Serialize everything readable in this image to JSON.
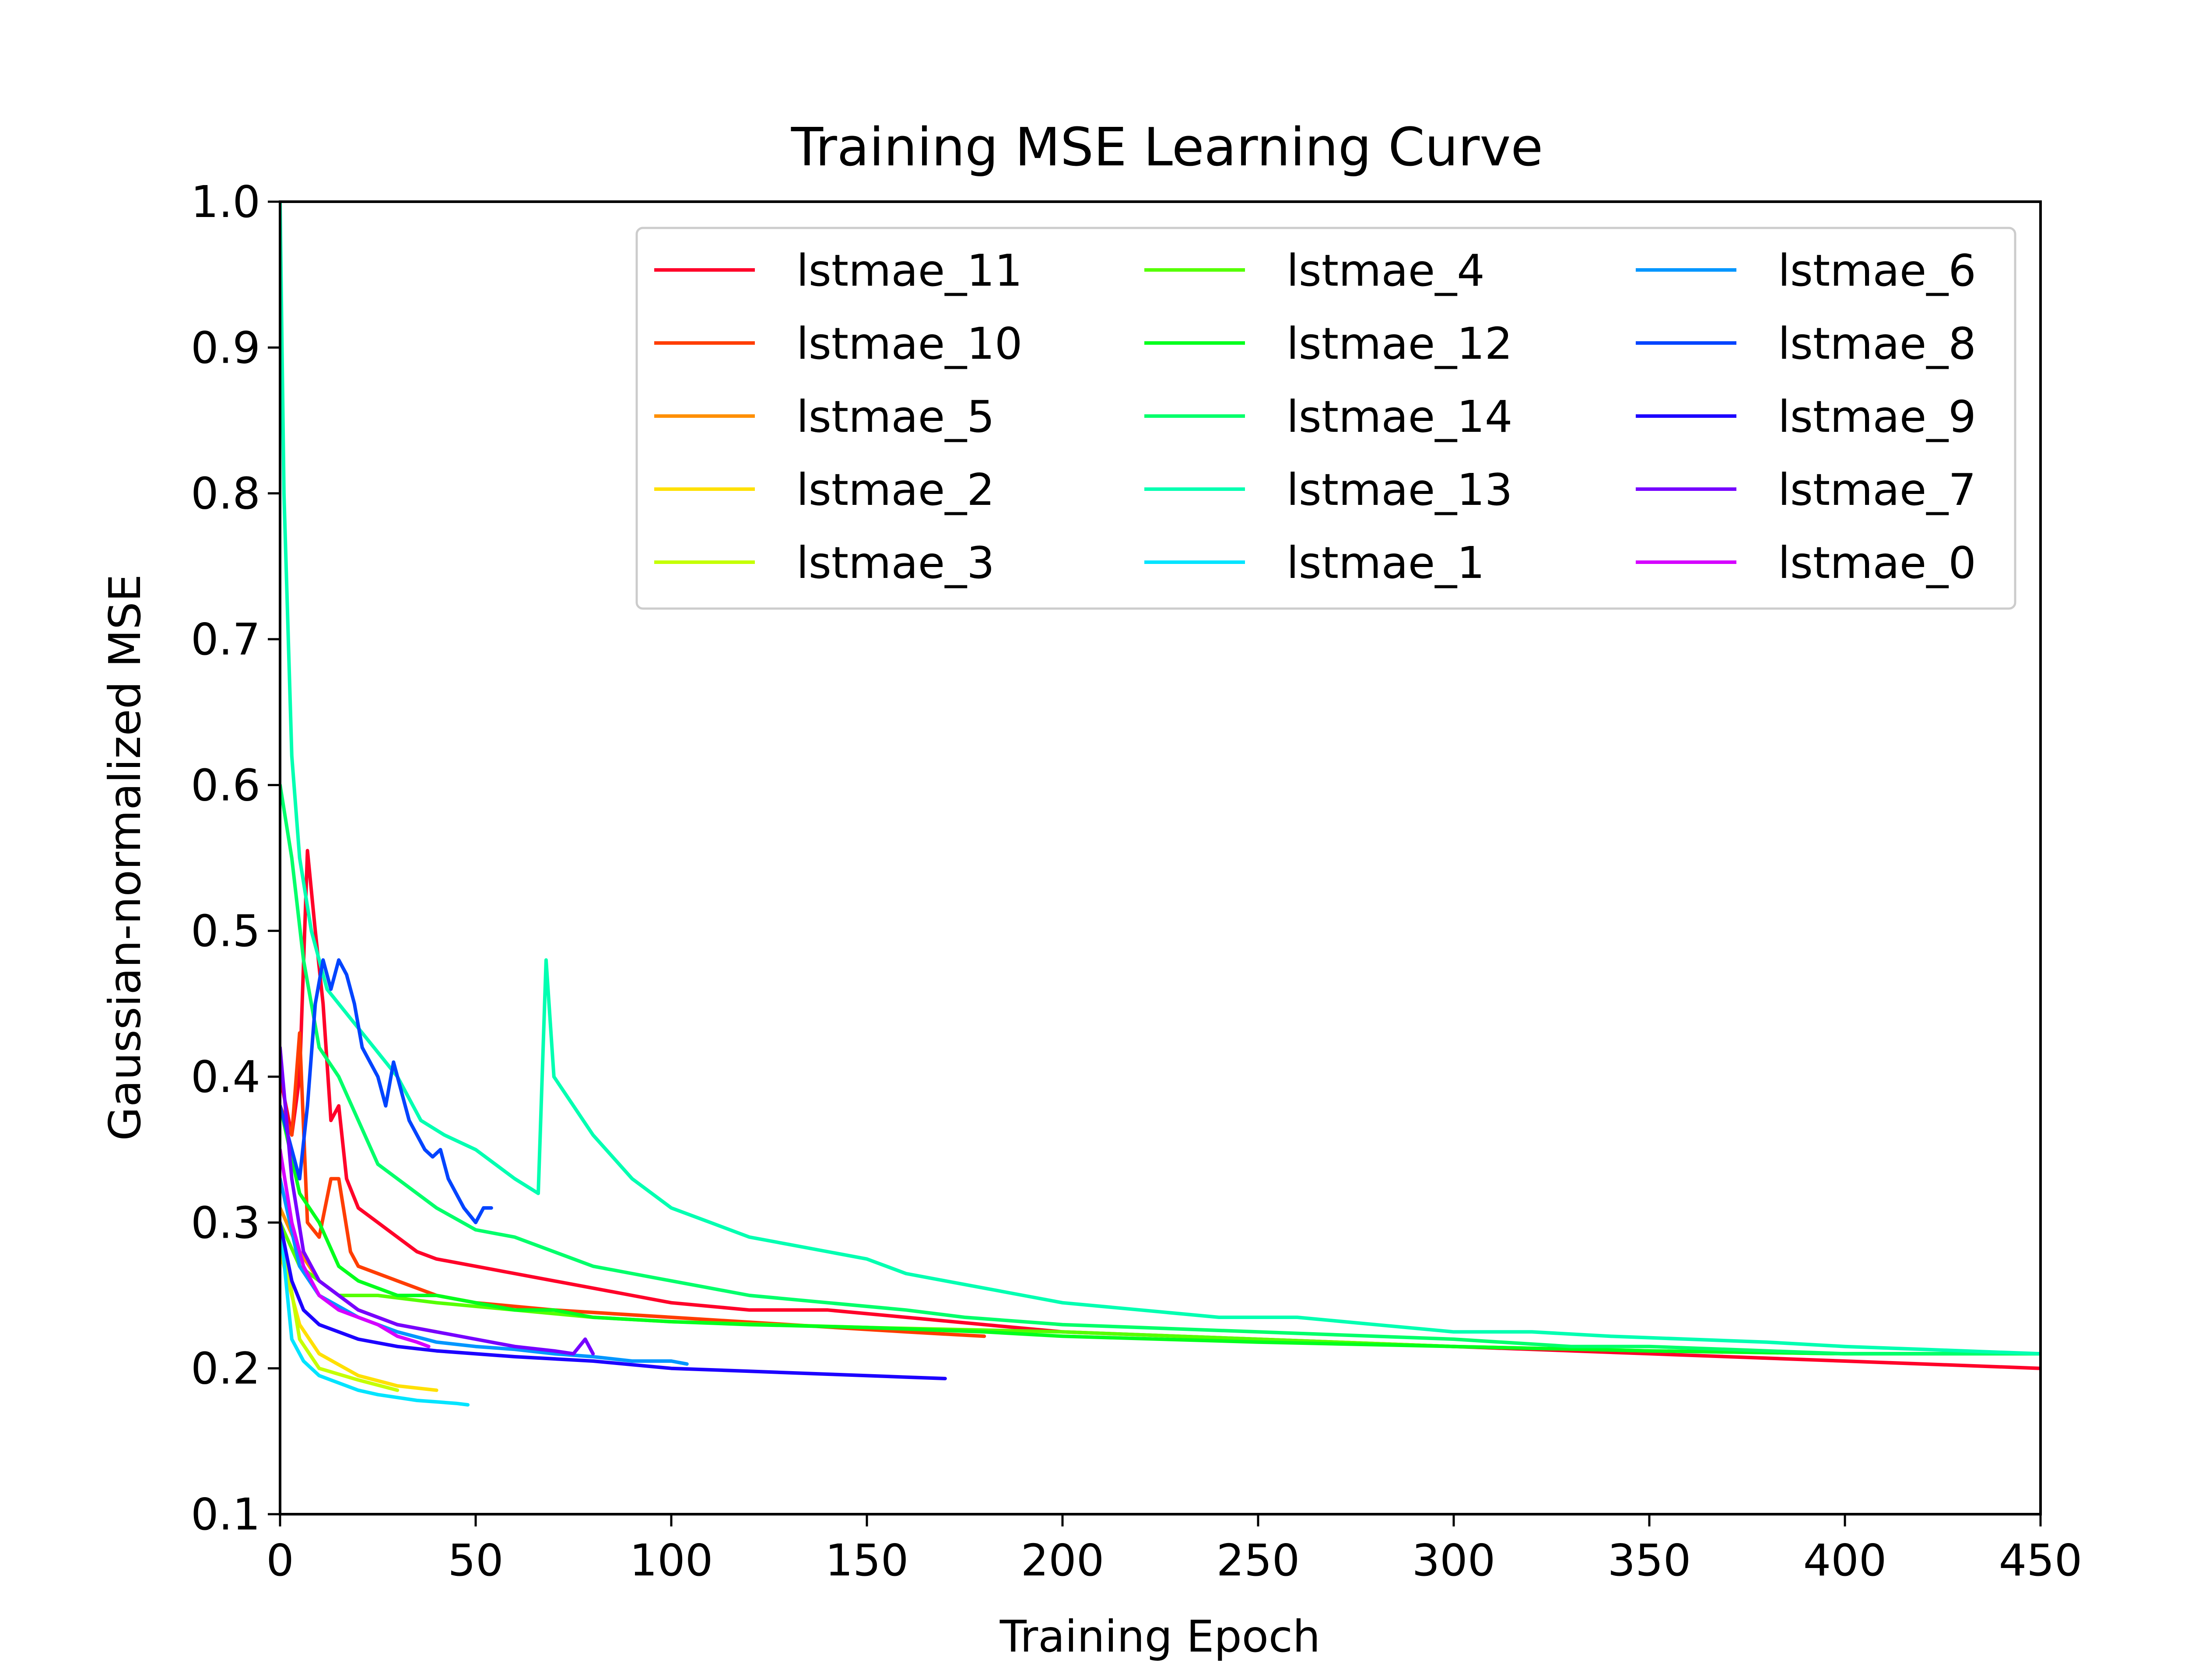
{
  "chart_data": {
    "type": "line",
    "title": "Training MSE Learning Curve",
    "xlabel": "Training Epoch",
    "ylabel": "Gaussian-normalized MSE",
    "xlim": [
      0,
      450
    ],
    "ylim": [
      0.1,
      1.0
    ],
    "xticks": [
      "0",
      "50",
      "100",
      "150",
      "200",
      "250",
      "300",
      "350",
      "400",
      "450"
    ],
    "yticks": [
      "0.1",
      "0.2",
      "0.3",
      "0.4",
      "0.5",
      "0.6",
      "0.7",
      "0.8",
      "0.9",
      "1.0"
    ],
    "grid": false,
    "legend_position": "top-right",
    "series": [
      {
        "name": "lstmae_11",
        "color": "#ff0029",
        "values": [
          [
            0,
            0.4
          ],
          [
            3,
            0.36
          ],
          [
            5,
            0.4
          ],
          [
            7,
            0.555
          ],
          [
            9,
            0.5
          ],
          [
            11,
            0.45
          ],
          [
            13,
            0.37
          ],
          [
            15,
            0.38
          ],
          [
            17,
            0.33
          ],
          [
            20,
            0.31
          ],
          [
            25,
            0.3
          ],
          [
            30,
            0.29
          ],
          [
            35,
            0.28
          ],
          [
            40,
            0.275
          ],
          [
            50,
            0.27
          ],
          [
            60,
            0.265
          ],
          [
            70,
            0.26
          ],
          [
            80,
            0.255
          ],
          [
            90,
            0.25
          ],
          [
            100,
            0.245
          ],
          [
            120,
            0.24
          ],
          [
            140,
            0.24
          ],
          [
            160,
            0.235
          ],
          [
            180,
            0.23
          ],
          [
            200,
            0.225
          ],
          [
            250,
            0.22
          ],
          [
            300,
            0.215
          ],
          [
            350,
            0.21
          ],
          [
            400,
            0.205
          ],
          [
            450,
            0.2
          ]
        ]
      },
      {
        "name": "lstmae_10",
        "color": "#ff3d00",
        "values": [
          [
            0,
            0.38
          ],
          [
            3,
            0.36
          ],
          [
            5,
            0.43
          ],
          [
            7,
            0.3
          ],
          [
            10,
            0.29
          ],
          [
            13,
            0.33
          ],
          [
            15,
            0.33
          ],
          [
            18,
            0.28
          ],
          [
            20,
            0.27
          ],
          [
            30,
            0.26
          ],
          [
            40,
            0.25
          ],
          [
            50,
            0.245
          ],
          [
            70,
            0.24
          ],
          [
            100,
            0.235
          ],
          [
            130,
            0.23
          ],
          [
            160,
            0.225
          ],
          [
            180,
            0.222
          ]
        ]
      },
      {
        "name": "lstmae_5",
        "color": "#ff8f00",
        "values": [
          [
            0,
            0.31
          ],
          [
            5,
            0.28
          ],
          [
            10,
            0.26
          ],
          [
            20,
            0.24
          ],
          [
            30,
            0.23
          ],
          [
            40,
            0.225
          ]
        ]
      },
      {
        "name": "lstmae_2",
        "color": "#ffe000",
        "values": [
          [
            0,
            0.28
          ],
          [
            5,
            0.23
          ],
          [
            10,
            0.21
          ],
          [
            20,
            0.195
          ],
          [
            30,
            0.188
          ],
          [
            40,
            0.185
          ]
        ]
      },
      {
        "name": "lstmae_3",
        "color": "#c5ff00",
        "values": [
          [
            0,
            0.3
          ],
          [
            5,
            0.22
          ],
          [
            10,
            0.2
          ],
          [
            20,
            0.192
          ],
          [
            30,
            0.185
          ]
        ]
      },
      {
        "name": "lstmae_4",
        "color": "#55ff00",
        "values": [
          [
            0,
            0.3
          ],
          [
            5,
            0.27
          ],
          [
            10,
            0.26
          ],
          [
            15,
            0.25
          ],
          [
            25,
            0.25
          ],
          [
            40,
            0.245
          ],
          [
            60,
            0.24
          ],
          [
            80,
            0.235
          ],
          [
            100,
            0.232
          ],
          [
            150,
            0.228
          ],
          [
            200,
            0.225
          ],
          [
            250,
            0.22
          ],
          [
            300,
            0.215
          ],
          [
            350,
            0.212
          ],
          [
            400,
            0.21
          ],
          [
            450,
            0.21
          ]
        ]
      },
      {
        "name": "lstmae_12",
        "color": "#00ff1c",
        "values": [
          [
            0,
            0.38
          ],
          [
            5,
            0.32
          ],
          [
            10,
            0.3
          ],
          [
            15,
            0.27
          ],
          [
            20,
            0.26
          ],
          [
            30,
            0.25
          ],
          [
            40,
            0.25
          ],
          [
            50,
            0.245
          ],
          [
            60,
            0.24
          ],
          [
            70,
            0.24
          ],
          [
            80,
            0.235
          ],
          [
            100,
            0.232
          ],
          [
            120,
            0.23
          ],
          [
            150,
            0.228
          ],
          [
            180,
            0.225
          ],
          [
            200,
            0.222
          ],
          [
            250,
            0.218
          ],
          [
            300,
            0.215
          ],
          [
            350,
            0.212
          ],
          [
            400,
            0.21
          ],
          [
            450,
            0.21
          ]
        ]
      },
      {
        "name": "lstmae_14",
        "color": "#00ff6a",
        "values": [
          [
            0,
            0.6
          ],
          [
            3,
            0.55
          ],
          [
            6,
            0.48
          ],
          [
            10,
            0.42
          ],
          [
            15,
            0.4
          ],
          [
            20,
            0.37
          ],
          [
            25,
            0.34
          ],
          [
            30,
            0.33
          ],
          [
            40,
            0.31
          ],
          [
            50,
            0.295
          ],
          [
            60,
            0.29
          ],
          [
            70,
            0.28
          ],
          [
            80,
            0.27
          ],
          [
            90,
            0.265
          ],
          [
            100,
            0.26
          ],
          [
            110,
            0.255
          ],
          [
            120,
            0.25
          ],
          [
            140,
            0.245
          ],
          [
            160,
            0.24
          ],
          [
            175,
            0.235
          ],
          [
            200,
            0.23
          ],
          [
            250,
            0.225
          ],
          [
            300,
            0.22
          ],
          [
            330,
            0.215
          ],
          [
            350,
            0.215
          ],
          [
            400,
            0.21
          ],
          [
            450,
            0.21
          ]
        ]
      },
      {
        "name": "lstmae_13",
        "color": "#00ffb1",
        "values": [
          [
            0,
            1.0
          ],
          [
            1,
            0.8
          ],
          [
            3,
            0.62
          ],
          [
            5,
            0.55
          ],
          [
            8,
            0.5
          ],
          [
            12,
            0.46
          ],
          [
            18,
            0.44
          ],
          [
            24,
            0.42
          ],
          [
            30,
            0.4
          ],
          [
            36,
            0.37
          ],
          [
            42,
            0.36
          ],
          [
            50,
            0.35
          ],
          [
            60,
            0.33
          ],
          [
            66,
            0.32
          ],
          [
            68,
            0.48
          ],
          [
            70,
            0.4
          ],
          [
            80,
            0.36
          ],
          [
            90,
            0.33
          ],
          [
            100,
            0.31
          ],
          [
            110,
            0.3
          ],
          [
            120,
            0.29
          ],
          [
            130,
            0.285
          ],
          [
            140,
            0.28
          ],
          [
            150,
            0.275
          ],
          [
            160,
            0.265
          ],
          [
            170,
            0.26
          ],
          [
            180,
            0.255
          ],
          [
            190,
            0.25
          ],
          [
            200,
            0.245
          ],
          [
            220,
            0.24
          ],
          [
            240,
            0.235
          ],
          [
            260,
            0.235
          ],
          [
            280,
            0.23
          ],
          [
            300,
            0.225
          ],
          [
            320,
            0.225
          ],
          [
            340,
            0.222
          ],
          [
            360,
            0.22
          ],
          [
            380,
            0.218
          ],
          [
            400,
            0.215
          ],
          [
            420,
            0.213
          ],
          [
            450,
            0.21
          ]
        ]
      },
      {
        "name": "lstmae_1",
        "color": "#00e4ff",
        "values": [
          [
            0,
            0.3
          ],
          [
            3,
            0.22
          ],
          [
            6,
            0.205
          ],
          [
            10,
            0.195
          ],
          [
            15,
            0.19
          ],
          [
            20,
            0.185
          ],
          [
            25,
            0.182
          ],
          [
            30,
            0.18
          ],
          [
            35,
            0.178
          ],
          [
            40,
            0.177
          ],
          [
            45,
            0.176
          ],
          [
            48,
            0.175
          ]
        ]
      },
      {
        "name": "lstmae_6",
        "color": "#0096ff",
        "values": [
          [
            0,
            0.33
          ],
          [
            5,
            0.27
          ],
          [
            10,
            0.25
          ],
          [
            20,
            0.235
          ],
          [
            30,
            0.225
          ],
          [
            40,
            0.218
          ],
          [
            50,
            0.215
          ],
          [
            60,
            0.213
          ],
          [
            70,
            0.21
          ],
          [
            80,
            0.208
          ],
          [
            90,
            0.205
          ],
          [
            100,
            0.205
          ],
          [
            104,
            0.203
          ]
        ]
      },
      {
        "name": "lstmae_8",
        "color": "#0044ff",
        "values": [
          [
            0,
            0.38
          ],
          [
            3,
            0.35
          ],
          [
            5,
            0.33
          ],
          [
            7,
            0.38
          ],
          [
            9,
            0.45
          ],
          [
            11,
            0.48
          ],
          [
            13,
            0.46
          ],
          [
            15,
            0.48
          ],
          [
            17,
            0.47
          ],
          [
            19,
            0.45
          ],
          [
            21,
            0.42
          ],
          [
            23,
            0.41
          ],
          [
            25,
            0.4
          ],
          [
            27,
            0.38
          ],
          [
            29,
            0.41
          ],
          [
            31,
            0.39
          ],
          [
            33,
            0.37
          ],
          [
            35,
            0.36
          ],
          [
            37,
            0.35
          ],
          [
            39,
            0.345
          ],
          [
            41,
            0.35
          ],
          [
            43,
            0.33
          ],
          [
            45,
            0.32
          ],
          [
            47,
            0.31
          ],
          [
            50,
            0.3
          ],
          [
            52,
            0.31
          ],
          [
            54,
            0.31
          ]
        ]
      },
      {
        "name": "lstmae_9",
        "color": "#1c00ff",
        "values": [
          [
            0,
            0.3
          ],
          [
            3,
            0.26
          ],
          [
            6,
            0.24
          ],
          [
            10,
            0.23
          ],
          [
            20,
            0.22
          ],
          [
            30,
            0.215
          ],
          [
            40,
            0.212
          ],
          [
            60,
            0.208
          ],
          [
            80,
            0.205
          ],
          [
            100,
            0.2
          ],
          [
            120,
            0.198
          ],
          [
            140,
            0.196
          ],
          [
            160,
            0.194
          ],
          [
            170,
            0.193
          ]
        ]
      },
      {
        "name": "lstmae_7",
        "color": "#7600ff",
        "values": [
          [
            0,
            0.42
          ],
          [
            3,
            0.33
          ],
          [
            6,
            0.28
          ],
          [
            10,
            0.26
          ],
          [
            15,
            0.25
          ],
          [
            20,
            0.24
          ],
          [
            25,
            0.235
          ],
          [
            30,
            0.23
          ],
          [
            40,
            0.225
          ],
          [
            50,
            0.22
          ],
          [
            60,
            0.215
          ],
          [
            70,
            0.212
          ],
          [
            75,
            0.21
          ],
          [
            78,
            0.22
          ],
          [
            80,
            0.21
          ]
        ]
      },
      {
        "name": "lstmae_0",
        "color": "#d500ff",
        "values": [
          [
            0,
            0.35
          ],
          [
            3,
            0.3
          ],
          [
            6,
            0.27
          ],
          [
            10,
            0.25
          ],
          [
            15,
            0.24
          ],
          [
            20,
            0.235
          ],
          [
            25,
            0.23
          ],
          [
            30,
            0.222
          ],
          [
            35,
            0.218
          ],
          [
            38,
            0.215
          ]
        ]
      }
    ]
  }
}
